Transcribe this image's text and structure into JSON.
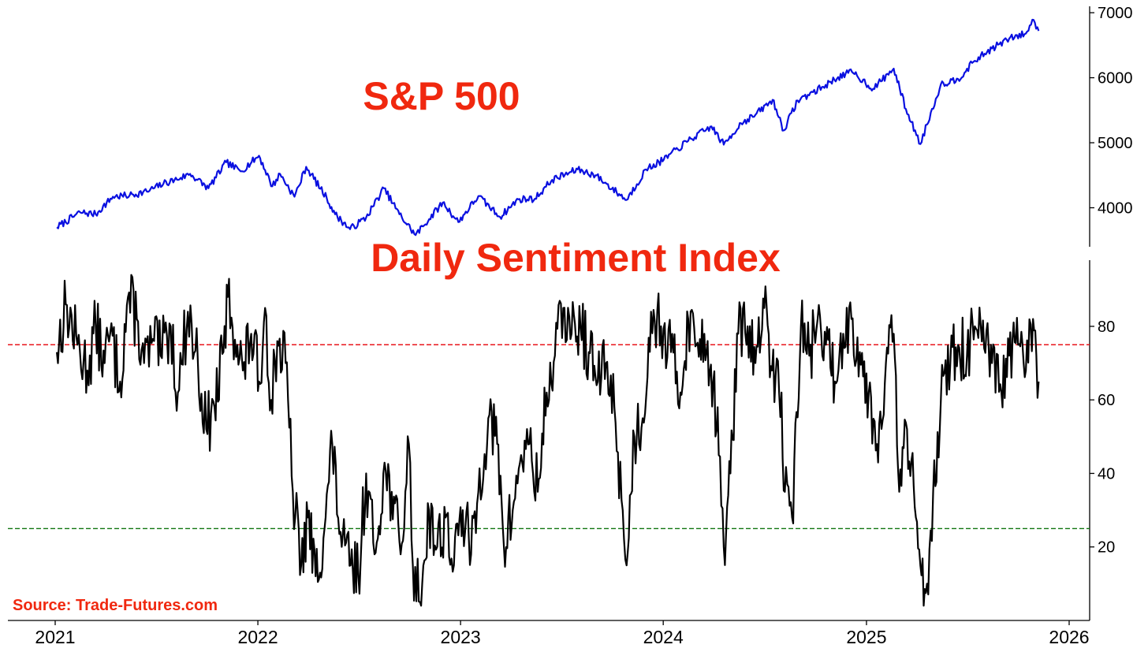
{
  "colors": {
    "sp_line": "#0a10e0",
    "dsi_line": "#000000",
    "title": "#f0280f",
    "upper_threshold": "#e8151b",
    "lower_threshold": "#117711"
  },
  "source": "Source: Trade-Futures.com",
  "chart_data": [
    {
      "type": "line",
      "title": "S&P 500",
      "x_type": "date",
      "xlim": [
        "2021-01-01",
        "2026-01-01"
      ],
      "x_ticks": [
        {
          "value": "2021-01-01",
          "label": "2021"
        },
        {
          "value": "2022-01-01",
          "label": "2022"
        },
        {
          "value": "2023-01-01",
          "label": "2023"
        },
        {
          "value": "2024-01-01",
          "label": "2024"
        },
        {
          "value": "2025-01-01",
          "label": "2025"
        },
        {
          "value": "2026-01-01",
          "label": "2026"
        }
      ],
      "ylim": [
        3400,
        7050
      ],
      "y_ticks": [
        4000,
        5000,
        6000,
        7000
      ],
      "y_axis_side": "right",
      "grid": false,
      "series": [
        {
          "x": [
            "2021-01-04",
            "2021-02-15",
            "2021-03-15",
            "2021-04-15",
            "2021-05-15",
            "2021-06-15",
            "2021-07-15",
            "2021-08-15",
            "2021-09-01",
            "2021-10-04",
            "2021-11-05",
            "2021-12-01",
            "2022-01-03",
            "2022-01-27",
            "2022-02-10",
            "2022-03-08",
            "2022-03-29",
            "2022-05-05",
            "2022-05-20",
            "2022-06-16",
            "2022-07-15",
            "2022-08-16",
            "2022-09-13",
            "2022-10-12",
            "2022-11-30",
            "2022-12-28",
            "2023-02-02",
            "2023-03-13",
            "2023-04-15",
            "2023-05-15",
            "2023-06-15",
            "2023-07-31",
            "2023-09-01",
            "2023-10-27",
            "2023-12-01",
            "2024-01-02",
            "2024-02-15",
            "2024-03-28",
            "2024-04-19",
            "2024-05-20",
            "2024-06-15",
            "2024-07-16",
            "2024-08-05",
            "2024-08-30",
            "2024-10-15",
            "2024-11-11",
            "2024-12-06",
            "2025-01-13",
            "2025-02-19",
            "2025-03-13",
            "2025-04-08",
            "2025-04-20",
            "2025-05-15",
            "2025-06-15",
            "2025-07-15",
            "2025-08-15",
            "2025-09-15",
            "2025-10-15",
            "2025-10-29",
            "2025-11-07"
          ],
          "values": [
            3700,
            3930,
            3900,
            4170,
            4190,
            4250,
            4370,
            4460,
            4520,
            4300,
            4700,
            4560,
            4800,
            4330,
            4520,
            4170,
            4630,
            4150,
            3900,
            3670,
            3850,
            4300,
            3900,
            3580,
            4080,
            3780,
            4180,
            3860,
            4130,
            4140,
            4430,
            4590,
            4500,
            4120,
            4590,
            4740,
            5030,
            5250,
            4970,
            5300,
            5430,
            5660,
            5190,
            5650,
            5860,
            6010,
            6090,
            5830,
            6140,
            5520,
            4980,
            5280,
            5900,
            5980,
            6260,
            6450,
            6600,
            6680,
            6890,
            6720
          ]
        }
      ]
    },
    {
      "type": "line",
      "title": "Daily Sentiment Index",
      "x_type": "date",
      "xlim": [
        "2021-01-01",
        "2026-01-01"
      ],
      "x_ticks": [
        {
          "value": "2021-01-01",
          "label": "2021"
        },
        {
          "value": "2022-01-01",
          "label": "2022"
        },
        {
          "value": "2023-01-01",
          "label": "2023"
        },
        {
          "value": "2024-01-01",
          "label": "2024"
        },
        {
          "value": "2025-01-01",
          "label": "2025"
        },
        {
          "value": "2026-01-01",
          "label": "2026"
        }
      ],
      "ylim": [
        0,
        98
      ],
      "y_ticks": [
        20,
        40,
        60,
        80
      ],
      "y_axis_side": "right",
      "grid": false,
      "reference_lines": [
        {
          "y": 75,
          "style": "dashed",
          "color": "#e8151b"
        },
        {
          "y": 25,
          "style": "dashed",
          "color": "#117711"
        }
      ],
      "series": [
        {
          "x": [
            "2021-01-04",
            "2021-01-20",
            "2021-02-10",
            "2021-02-28",
            "2021-03-15",
            "2021-03-31",
            "2021-04-10",
            "2021-04-28",
            "2021-05-12",
            "2021-05-28",
            "2021-06-10",
            "2021-06-28",
            "2021-07-10",
            "2021-07-28",
            "2021-08-10",
            "2021-08-28",
            "2021-09-15",
            "2021-09-30",
            "2021-10-15",
            "2021-10-31",
            "2021-11-08",
            "2021-11-25",
            "2021-12-05",
            "2021-12-20",
            "2022-01-03",
            "2022-01-14",
            "2022-01-25",
            "2022-02-05",
            "2022-02-20",
            "2022-03-05",
            "2022-03-20",
            "2022-04-01",
            "2022-04-15",
            "2022-05-01",
            "2022-05-15",
            "2022-06-01",
            "2022-06-17",
            "2022-07-01",
            "2022-07-15",
            "2022-07-30",
            "2022-08-15",
            "2022-08-30",
            "2022-09-15",
            "2022-09-30",
            "2022-10-07",
            "2022-10-20",
            "2022-11-05",
            "2022-11-20",
            "2022-12-05",
            "2022-12-20",
            "2023-01-05",
            "2023-01-20",
            "2023-02-02",
            "2023-02-20",
            "2023-03-08",
            "2023-03-20",
            "2023-04-05",
            "2023-04-20",
            "2023-05-05",
            "2023-05-20",
            "2023-06-05",
            "2023-06-20",
            "2023-07-05",
            "2023-07-20",
            "2023-08-05",
            "2023-08-20",
            "2023-09-05",
            "2023-09-20",
            "2023-10-05",
            "2023-10-20",
            "2023-10-27",
            "2023-11-10",
            "2023-11-25",
            "2023-12-10",
            "2023-12-28",
            "2024-01-15",
            "2024-02-01",
            "2024-02-15",
            "2024-03-01",
            "2024-03-15",
            "2024-03-31",
            "2024-04-10",
            "2024-04-19",
            "2024-05-01",
            "2024-05-15",
            "2024-06-01",
            "2024-06-15",
            "2024-07-01",
            "2024-07-15",
            "2024-08-01",
            "2024-08-07",
            "2024-08-20",
            "2024-09-05",
            "2024-09-20",
            "2024-10-05",
            "2024-10-20",
            "2024-11-05",
            "2024-11-20",
            "2024-12-05",
            "2024-12-20",
            "2025-01-05",
            "2025-01-20",
            "2025-02-05",
            "2025-02-19",
            "2025-03-01",
            "2025-03-15",
            "2025-03-31",
            "2025-04-08",
            "2025-04-20",
            "2025-05-01",
            "2025-05-15",
            "2025-06-01",
            "2025-06-15",
            "2025-07-01",
            "2025-07-15",
            "2025-08-01",
            "2025-08-15",
            "2025-09-01",
            "2025-09-15",
            "2025-10-01",
            "2025-10-15",
            "2025-10-28",
            "2025-11-03",
            "2025-11-07"
          ],
          "values": [
            73,
            86,
            75,
            68,
            80,
            70,
            78,
            65,
            88,
            82,
            70,
            76,
            72,
            80,
            62,
            84,
            70,
            52,
            58,
            73,
            88,
            75,
            68,
            78,
            65,
            85,
            60,
            76,
            70,
            35,
            15,
            28,
            12,
            25,
            48,
            20,
            15,
            12,
            40,
            18,
            40,
            35,
            18,
            48,
            15,
            5,
            30,
            20,
            28,
            15,
            30,
            18,
            35,
            55,
            48,
            20,
            30,
            45,
            48,
            35,
            62,
            72,
            85,
            78,
            80,
            73,
            65,
            70,
            58,
            30,
            15,
            50,
            55,
            84,
            80,
            73,
            62,
            82,
            75,
            78,
            65,
            45,
            20,
            40,
            78,
            80,
            70,
            85,
            68,
            62,
            35,
            28,
            80,
            72,
            82,
            75,
            65,
            78,
            82,
            73,
            62,
            48,
            70,
            78,
            35,
            52,
            28,
            15,
            10,
            35,
            60,
            70,
            75,
            72,
            80,
            74,
            70,
            62,
            72,
            75,
            68,
            82,
            72,
            65
          ]
        }
      ]
    }
  ]
}
